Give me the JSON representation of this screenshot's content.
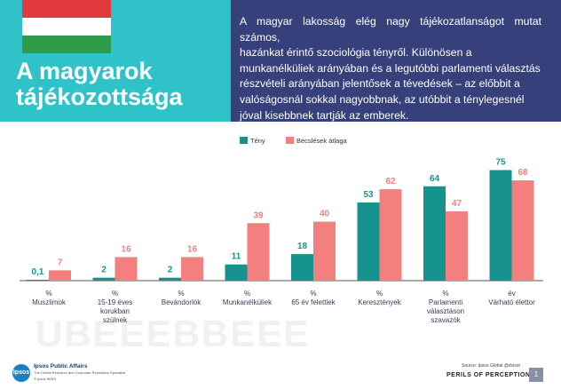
{
  "header": {
    "title_line1": "A magyarok",
    "title_line2": "tájékozottsága",
    "description_lines": [
      "A magyar lakosság elég nagy tájékozatlanságot  mutat  számos,",
      "hazánkat érintő szociológia  tényről.  Különösen a",
      "munkanélküliek  arányában és a legutóbbi parlamenti  választás",
      "részvételi arányában  jelentősek  a tévedések – az előbbit  a",
      "valóságosnál  sokkal nagyobbnak,  az utóbbit  a ténylegesnél",
      "jóval kisebbnek  tartják  az emberek."
    ],
    "flag_colors": [
      "#e03a3e",
      "#ffffff",
      "#2f9a48"
    ]
  },
  "chart_data": {
    "type": "bar",
    "categories": [
      [
        "%",
        "Muszlimok"
      ],
      [
        "%",
        "15-19 éves",
        "korukban",
        "szülnek"
      ],
      [
        "%",
        "Bevándorlók"
      ],
      [
        "%",
        "Munkanélküliek"
      ],
      [
        "%",
        "65 év felettiek"
      ],
      [
        "%",
        "Keresztények"
      ],
      [
        "%",
        "Parlamenti",
        "választáson",
        "szavazók"
      ],
      [
        "év",
        "Várható élettor"
      ]
    ],
    "series": [
      {
        "name": "Tény",
        "color": "#16938f",
        "values": [
          0.1,
          2,
          2,
          11,
          18,
          53,
          64,
          75
        ],
        "labels": [
          "0,1",
          "2",
          "2",
          "11",
          "18",
          "53",
          "64",
          "75"
        ]
      },
      {
        "name": "Becslések átlaga",
        "color": "#f47f7f",
        "values": [
          7,
          16,
          16,
          39,
          40,
          62,
          47,
          68
        ],
        "labels": [
          "7",
          "16",
          "16",
          "39",
          "40",
          "62",
          "47",
          "68"
        ]
      }
    ],
    "ylim": [
      0,
      80
    ],
    "legend_position": "top-center",
    "colors": {
      "tény": "#16938f",
      "becslés": "#f47f7f",
      "label_tény": "#16938f",
      "label_becslés": "#f47f7f",
      "axis": "#555555",
      "category_text": "#3a3a5a"
    }
  },
  "watermark": "UBEEEBBEEE",
  "footer": {
    "logo_text": "Ipsos",
    "org": "Ipsos Public Affairs",
    "org_sub": "The Global Research and Corporate Reputation Specialist",
    "copyright": "© Ipsos MORI",
    "source": "Source: Ipsos Global @dvisor",
    "perils": "PERILS OF PERCEPTION",
    "page": "1"
  }
}
